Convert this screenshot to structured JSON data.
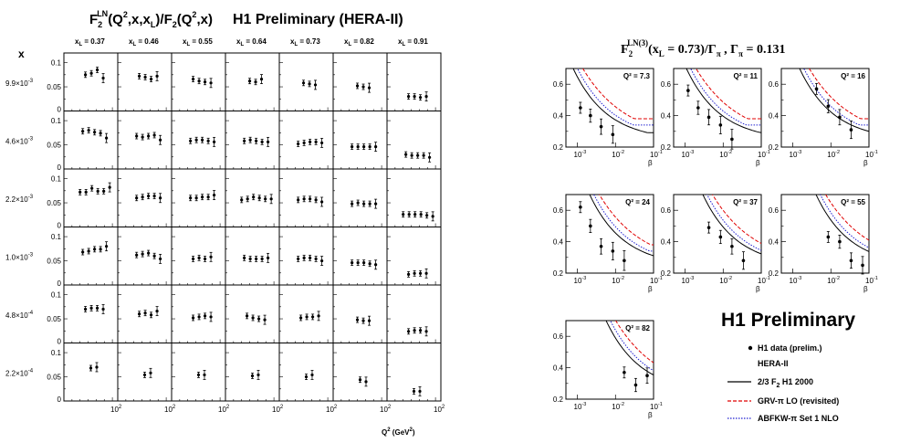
{
  "left": {
    "title_main": "F",
    "title_sub": "2",
    "title_sup": "LN",
    "title_rest": "(Q",
    "title_q2": "2",
    "title_args": ",x,x",
    "title_xl_sub": "L",
    "title_tail": ")/F",
    "title_f2_sub": "2",
    "title_end": "(Q",
    "title_q2b": "2",
    "title_x": ",x)",
    "experiment": "H1 Preliminary (HERA-II)",
    "x_header": "x",
    "xl_labels": [
      "x",
      "x",
      "x",
      "x",
      "x",
      "x",
      "x"
    ],
    "xl_values": [
      "= 0.37",
      "= 0.46",
      "= 0.55",
      "= 0.64",
      "= 0.73",
      "= 0.82",
      "= 0.91"
    ],
    "x_rows": [
      "9.9×10",
      "4.6×10",
      "2.2×10",
      "1.0×10",
      "4.8×10",
      "2.2×10"
    ],
    "x_row_exp": [
      "-3",
      "-3",
      "-3",
      "-3",
      "-4",
      "-4"
    ],
    "y_ticks": [
      "0.1",
      "0.05",
      "0"
    ],
    "x_tick": "10",
    "x_tick_exp": "2",
    "xaxis_label": "Q",
    "xaxis_label_sup": "2",
    "xaxis_unit": " (GeV",
    "xaxis_unit_sup": "2",
    "xaxis_unit_end": ")"
  },
  "right": {
    "title": "F",
    "title_sub": "2",
    "title_sup": "LN(3)",
    "title_rest": "(x",
    "title_xl_sub": "L",
    "title_mid": " = 0.73)/Γ",
    "title_pi_sub": "π",
    "title_end": " , Γ",
    "title_pi_sub2": "π",
    "title_val": " = 0.131",
    "y_ticks": [
      "0.6",
      "0.4",
      "0.2"
    ],
    "x_ticks": [
      "10",
      "10",
      "10"
    ],
    "x_tick_exp": [
      "-3",
      "-2",
      "-1"
    ],
    "xlabel": "β",
    "experiment": "H1 Preliminary",
    "legend": {
      "data_label": "H1 data (prelim.)",
      "hera": "HERA-II",
      "line1": "2/3 F",
      "line1_sub": "2",
      "line1_rest": "  H1 2000",
      "line2": "GRV-π LO (revisited)",
      "line3": "ABFKW-π Set 1 NLO"
    },
    "colors": {
      "h1": "#000000",
      "grv": "#e00000",
      "abfkw": "#2020d0"
    }
  },
  "chart_data": [
    {
      "type": "scatter",
      "title": "F2LN(Q2,x,xL)/F2(Q2,x)",
      "xlabel": "Q2 (GeV2)",
      "ylabel": "",
      "ylim": [
        0,
        0.12
      ],
      "columns": [
        0.37,
        0.46,
        0.55,
        0.64,
        0.73,
        0.82,
        0.91
      ],
      "rows": [
        "9.9e-3",
        "4.6e-3",
        "2.2e-3",
        "1.0e-3",
        "4.8e-4",
        "2.2e-4"
      ],
      "cells": [
        [
          [
            0.075,
            0.078,
            0.085,
            0.068
          ],
          [
            0.072,
            0.07,
            0.066,
            0.072
          ],
          [
            0.066,
            0.062,
            0.06,
            0.058
          ],
          [
            0.062,
            0.06,
            0.066
          ],
          [
            0.058,
            0.056,
            0.054
          ],
          [
            0.052,
            0.05,
            0.048
          ],
          [
            0.03,
            0.03,
            0.028,
            0.03
          ]
        ],
        [
          [
            0.078,
            0.08,
            0.076,
            0.074,
            0.064
          ],
          [
            0.068,
            0.066,
            0.068,
            0.07,
            0.06
          ],
          [
            0.058,
            0.06,
            0.06,
            0.058,
            0.056
          ],
          [
            0.058,
            0.06,
            0.058,
            0.056,
            0.056
          ],
          [
            0.052,
            0.054,
            0.056,
            0.056,
            0.054
          ],
          [
            0.046,
            0.046,
            0.046,
            0.046,
            0.046
          ],
          [
            0.03,
            0.028,
            0.028,
            0.028,
            0.024
          ]
        ],
        [
          [
            0.072,
            0.072,
            0.08,
            0.074,
            0.074,
            0.082
          ],
          [
            0.06,
            0.062,
            0.064,
            0.064,
            0.06
          ],
          [
            0.06,
            0.06,
            0.062,
            0.062,
            0.066
          ],
          [
            0.056,
            0.058,
            0.062,
            0.06,
            0.058,
            0.058
          ],
          [
            0.056,
            0.058,
            0.058,
            0.056,
            0.052
          ],
          [
            0.048,
            0.05,
            0.048,
            0.048,
            0.048
          ],
          [
            0.026,
            0.026,
            0.026,
            0.026,
            0.024,
            0.022
          ]
        ],
        [
          [
            0.068,
            0.07,
            0.074,
            0.074,
            0.08
          ],
          [
            0.062,
            0.064,
            0.066,
            0.06,
            0.054
          ],
          [
            0.054,
            0.056,
            0.054,
            0.058
          ],
          [
            0.056,
            0.054,
            0.054,
            0.054,
            0.056
          ],
          [
            0.054,
            0.056,
            0.056,
            0.054,
            0.05
          ],
          [
            0.046,
            0.046,
            0.046,
            0.044,
            0.042
          ],
          [
            0.022,
            0.024,
            0.024,
            0.024
          ]
        ],
        [
          [
            0.07,
            0.072,
            0.072,
            0.07
          ],
          [
            0.06,
            0.062,
            0.058,
            0.066
          ],
          [
            0.052,
            0.054,
            0.056,
            0.054
          ],
          [
            0.056,
            0.052,
            0.05,
            0.048
          ],
          [
            0.052,
            0.054,
            0.054,
            0.056
          ],
          [
            0.048,
            0.046,
            0.046
          ],
          [
            0.024,
            0.026,
            0.026,
            0.024
          ]
        ],
        [
          [
            0.068,
            0.07
          ],
          [
            0.054,
            0.058
          ],
          [
            0.054,
            0.054
          ],
          [
            0.052,
            0.054
          ],
          [
            0.05,
            0.054
          ],
          [
            0.044,
            0.04
          ],
          [
            0.02,
            0.02
          ]
        ]
      ]
    },
    {
      "type": "scatter",
      "title": "F2LN(3)(xL = 0.73)/Γπ , Γπ = 0.131",
      "xlabel": "β",
      "ylim": [
        0.2,
        0.7
      ],
      "xlim": [
        0.0005,
        0.1
      ],
      "panels": [
        {
          "q2": "Q² = 7.3",
          "beta": [
            0.0012,
            0.0022,
            0.0042,
            0.0085
          ],
          "values": [
            0.45,
            0.4,
            0.33,
            0.28
          ]
        },
        {
          "q2": "Q² = 11",
          "beta": [
            0.0012,
            0.0022,
            0.0042,
            0.0085,
            0.017
          ],
          "values": [
            0.56,
            0.45,
            0.39,
            0.34,
            0.25
          ]
        },
        {
          "q2": "Q² = 16",
          "beta": [
            0.0042,
            0.0085,
            0.017,
            0.034
          ],
          "values": [
            0.57,
            0.46,
            0.39,
            0.31
          ]
        },
        {
          "q2": "Q² = 24",
          "beta": [
            0.0012,
            0.0022,
            0.0042,
            0.0085,
            0.017
          ],
          "values": [
            0.62,
            0.5,
            0.37,
            0.34,
            0.28
          ]
        },
        {
          "q2": "Q² = 37",
          "beta": [
            0.0042,
            0.0085,
            0.017,
            0.034
          ],
          "values": [
            0.49,
            0.43,
            0.37,
            0.28
          ]
        },
        {
          "q2": "Q² = 55",
          "beta": [
            0.0085,
            0.017,
            0.034,
            0.068
          ],
          "values": [
            0.43,
            0.4,
            0.28,
            0.25
          ]
        },
        {
          "q2": "Q² = 82",
          "beta": [
            0.017,
            0.034,
            0.068
          ],
          "values": [
            0.37,
            0.29,
            0.35
          ]
        }
      ],
      "series": [
        {
          "name": "2/3 F2 H1 2000"
        },
        {
          "name": "GRV-π LO (revisited)"
        },
        {
          "name": "ABFKW-π Set 1 NLO"
        }
      ]
    }
  ]
}
